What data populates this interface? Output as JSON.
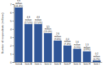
{
  "chart_data": {
    "type": "bar",
    "y_label": "Number of respondents (millions)",
    "categories": [
      "Item A",
      "Item B",
      "Item C",
      "Item D",
      "Item E",
      "Item F",
      "Item G",
      "Item H",
      "Item I"
    ],
    "values": [
      6.6,
      4.6,
      4.6,
      3.5,
      2.6,
      2.0,
      1.6,
      1.3,
      0.2
    ],
    "value_labels": [
      "6.6 million (24.4%)",
      "4.6 million (17.0%)",
      "4.6 million (17.0%)",
      "3.5 million (13.0%)",
      "2.6 million (9.6%)",
      "2.0 million (7.4%)",
      "1.6 million (5.9%)",
      "1.3 million (4.8%)",
      "0.2 million (0.7%)"
    ],
    "color": "#2f5597",
    "ylim": [
      0,
      7
    ],
    "yticks": [
      0,
      1,
      2,
      3,
      4,
      5,
      6,
      7
    ],
    "grid": false,
    "data_labels": true
  }
}
